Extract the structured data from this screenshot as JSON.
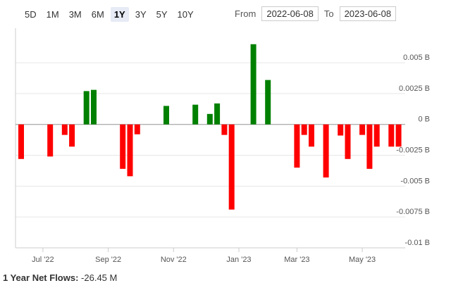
{
  "controls": {
    "ranges": [
      "5D",
      "1M",
      "3M",
      "6M",
      "1Y",
      "3Y",
      "5Y",
      "10Y"
    ],
    "selected_index": 4,
    "from_label": "From",
    "from_date": "2022-06-08",
    "to_label": "To",
    "to_date": "2023-06-08"
  },
  "chart_data": {
    "type": "bar",
    "categories": [
      null,
      null,
      null,
      "Jul '22",
      null,
      null,
      null,
      null,
      null,
      null,
      null,
      null,
      "Sep '22",
      null,
      null,
      null,
      null,
      null,
      null,
      null,
      null,
      "Nov '22",
      null,
      null,
      null,
      null,
      null,
      null,
      null,
      null,
      "Jan '23",
      null,
      null,
      null,
      null,
      null,
      null,
      null,
      "Mar '23",
      null,
      null,
      null,
      null,
      null,
      null,
      null,
      null,
      "May '23",
      null,
      null,
      null,
      null,
      null
    ],
    "values": [
      -0.0028,
      null,
      null,
      null,
      -0.0026,
      null,
      -0.00085,
      -0.0018,
      null,
      0.0027,
      0.0028,
      null,
      null,
      null,
      -0.0036,
      -0.0042,
      -0.0008,
      null,
      null,
      null,
      0.0015,
      null,
      null,
      null,
      0.0016,
      null,
      0.00085,
      0.0017,
      -0.00085,
      -0.0069,
      null,
      null,
      0.0065,
      null,
      0.0036,
      null,
      null,
      null,
      -0.0035,
      -0.00085,
      -0.0018,
      null,
      -0.0043,
      null,
      -0.0009,
      -0.0028,
      null,
      -0.00085,
      -0.0036,
      -0.0018,
      null,
      -0.0018,
      -0.0018
    ],
    "positive_color": "#008000",
    "negative_color": "#ff0000",
    "ylim": [
      -0.01,
      0.0078
    ],
    "yticks": [
      {
        "value": -0.01,
        "label": "-0.01 B"
      },
      {
        "value": -0.0075,
        "label": "-0.0075 B"
      },
      {
        "value": -0.005,
        "label": "-0.005 B"
      },
      {
        "value": -0.0025,
        "label": "-0.0025 B"
      },
      {
        "value": 0,
        "label": "0 B"
      },
      {
        "value": 0.0025,
        "label": "0.0025 B"
      },
      {
        "value": 0.005,
        "label": "0.005 B"
      }
    ],
    "grid": true
  },
  "footer": {
    "label": "1 Year Net Flows:",
    "value": "-26.45 M"
  }
}
